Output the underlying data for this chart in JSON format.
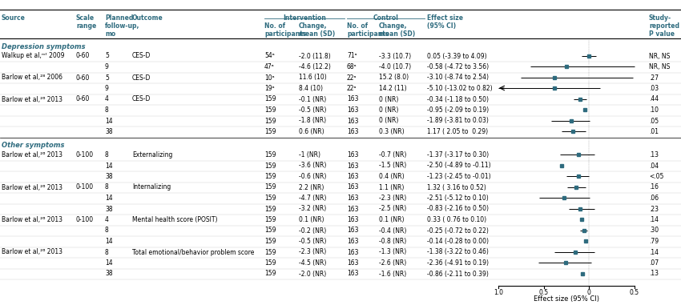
{
  "section_headers": [
    "Depression symptoms",
    "Other symptoms"
  ],
  "rows": [
    {
      "source": "Walkup et al,ᵐᶠ 2009",
      "scale": "0-60",
      "followup": "5",
      "outcome": "CES-D",
      "int_n": "54ᵃ",
      "int_change": "-2.0 (11.8)",
      "ctrl_n": "71ᵃ",
      "ctrl_change": "-3.3 (10.7)",
      "effect": "0.05 (-3.39 to 4.09)",
      "effect_val": 0.0,
      "ci_lo": -0.08,
      "ci_hi": 0.08,
      "p_val": "NR, NS",
      "section": 0,
      "arrow_left": false
    },
    {
      "source": "",
      "scale": "",
      "followup": "9",
      "outcome": "",
      "int_n": "47ᵃ",
      "int_change": "-4.6 (12.2)",
      "ctrl_n": "68ᵃ",
      "ctrl_change": "-4.0 (10.7)",
      "effect": "-0.58 (-4.72 to 3.56)",
      "effect_val": -0.25,
      "ci_lo": -0.65,
      "ci_hi": 0.52,
      "p_val": "NR, NS",
      "section": 0,
      "arrow_left": false
    },
    {
      "source": "Barlow et al,²⁸ 2006",
      "scale": "0-60",
      "followup": "5",
      "outcome": "CES-D",
      "int_n": "10ᵃ",
      "int_change": "11.6 (10)",
      "ctrl_n": "22ᵃ",
      "ctrl_change": "15.2 (8.0)",
      "effect": "-3.10 (-8.74 to 2.54)",
      "effect_val": -0.38,
      "ci_lo": -0.75,
      "ci_hi": 0.48,
      "p_val": ".27",
      "section": 0,
      "arrow_left": false
    },
    {
      "source": "",
      "scale": "",
      "followup": "9",
      "outcome": "",
      "int_n": "19ᵃ",
      "int_change": "8.4 (10)",
      "ctrl_n": "22ᵃ",
      "ctrl_change": "14.2 (11)",
      "effect": "-5.10 (-13.02 to 0.82)",
      "effect_val": -0.38,
      "ci_lo": -1.15,
      "ci_hi": 0.12,
      "p_val": ".03",
      "section": 0,
      "arrow_left": true
    },
    {
      "source": "Barlow et al,²⁶ 2013",
      "scale": "0-60",
      "followup": "4",
      "outcome": "CES-D",
      "int_n": "159",
      "int_change": "-0.1 (NR)",
      "ctrl_n": "163",
      "ctrl_change": "0 (NR)",
      "effect": "-0.34 (-1.18 to 0.50)",
      "effect_val": -0.1,
      "ci_lo": -0.17,
      "ci_hi": -0.03,
      "p_val": ".44",
      "section": 0,
      "arrow_left": false
    },
    {
      "source": "",
      "scale": "",
      "followup": "8",
      "outcome": "",
      "int_n": "159",
      "int_change": "-0.5 (NR)",
      "ctrl_n": "163",
      "ctrl_change": "0 (NR)",
      "effect": "-0.95 (-2.09 to 0.19)",
      "effect_val": -0.05,
      "ci_lo": -0.05,
      "ci_hi": -0.05,
      "p_val": ".10",
      "section": 0,
      "arrow_left": false
    },
    {
      "source": "",
      "scale": "",
      "followup": "14",
      "outcome": "",
      "int_n": "159",
      "int_change": "-1.8 (NR)",
      "ctrl_n": "163",
      "ctrl_change": "0 (NR)",
      "effect": "-1.89 (-3.81 to 0.03)",
      "effect_val": -0.2,
      "ci_lo": -0.42,
      "ci_hi": 0.01,
      "p_val": ".05",
      "section": 0,
      "arrow_left": false
    },
    {
      "source": "",
      "scale": "",
      "followup": "38",
      "outcome": "",
      "int_n": "159",
      "int_change": "0.6 (NR)",
      "ctrl_n": "163",
      "ctrl_change": "0.3 (NR)",
      "effect": "1.17 ( 2.05 to  0.29)",
      "effect_val": -0.18,
      "ci_lo": -0.3,
      "ci_hi": -0.04,
      "p_val": ".01",
      "section": 0,
      "arrow_left": false
    },
    {
      "source": "Barlow et al,²⁶ 2013",
      "scale": "0-100",
      "followup": "8",
      "outcome": "Externalizing",
      "int_n": "159",
      "int_change": "-1 (NR)",
      "ctrl_n": "163",
      "ctrl_change": "-0.7 (NR)",
      "effect": "-1.37 (-3.17 to 0.30)",
      "effect_val": -0.12,
      "ci_lo": -0.32,
      "ci_hi": 0.06,
      "p_val": ".13",
      "section": 1,
      "arrow_left": false
    },
    {
      "source": "",
      "scale": "",
      "followup": "14",
      "outcome": "",
      "int_n": "159",
      "int_change": "-3.6 (NR)",
      "ctrl_n": "163",
      "ctrl_change": "-1.5 (NR)",
      "effect": "-2.50 (-4.89 to -0.11)",
      "effect_val": -0.3,
      "ci_lo": -0.3,
      "ci_hi": -0.3,
      "p_val": ".04",
      "section": 1,
      "arrow_left": false
    },
    {
      "source": "",
      "scale": "",
      "followup": "38",
      "outcome": "",
      "int_n": "159",
      "int_change": "-0.6 (NR)",
      "ctrl_n": "163",
      "ctrl_change": "0.4 (NR)",
      "effect": "-1.23 (-2.45 to -0.01)",
      "effect_val": -0.12,
      "ci_lo": -0.25,
      "ci_hi": 0.0,
      "p_val": "<.05",
      "section": 1,
      "arrow_left": false
    },
    {
      "source": "Barlow et al,²⁶ 2013",
      "scale": "0-100",
      "followup": "8",
      "outcome": "Internalizing",
      "int_n": "159",
      "int_change": "2.2 (NR)",
      "ctrl_n": "163",
      "ctrl_change": "1.1 (NR)",
      "effect": "1.32 ( 3.16 to 0.52)",
      "effect_val": -0.14,
      "ci_lo": -0.24,
      "ci_hi": -0.04,
      "p_val": ".16",
      "section": 1,
      "arrow_left": false
    },
    {
      "source": "",
      "scale": "",
      "followup": "14",
      "outcome": "",
      "int_n": "159",
      "int_change": "-4.7 (NR)",
      "ctrl_n": "163",
      "ctrl_change": "-2.3 (NR)",
      "effect": "-2.51 (-5.12 to 0.10)",
      "effect_val": -0.28,
      "ci_lo": -0.55,
      "ci_hi": 0.01,
      "p_val": ".06",
      "section": 1,
      "arrow_left": false
    },
    {
      "source": "",
      "scale": "",
      "followup": "38",
      "outcome": "",
      "int_n": "159",
      "int_change": "-3.2 (NR)",
      "ctrl_n": "163",
      "ctrl_change": "-2.5 (NR)",
      "effect": "-0.83 (-2.16 to 0.50)",
      "effect_val": -0.1,
      "ci_lo": -0.22,
      "ci_hi": 0.06,
      "p_val": ".23",
      "section": 1,
      "arrow_left": false
    },
    {
      "source": "Barlow et al,²⁶ 2013",
      "scale": "0-100",
      "followup": "4",
      "outcome": "Mental health score (POSIT)",
      "int_n": "159",
      "int_change": "0.1 (NR)",
      "ctrl_n": "163",
      "ctrl_change": "0.1 (NR)",
      "effect": "0.33 ( 0.76 to 0.10)",
      "effect_val": -0.08,
      "ci_lo": -0.08,
      "ci_hi": -0.08,
      "p_val": ".14",
      "section": 1,
      "arrow_left": false
    },
    {
      "source": "",
      "scale": "",
      "followup": "8",
      "outcome": "",
      "int_n": "159",
      "int_change": "-0.2 (NR)",
      "ctrl_n": "163",
      "ctrl_change": "-0.4 (NR)",
      "effect": "-0.25 (-0.72 to 0.22)",
      "effect_val": -0.06,
      "ci_lo": -0.1,
      "ci_hi": -0.02,
      "p_val": ".30",
      "section": 1,
      "arrow_left": false
    },
    {
      "source": "",
      "scale": "",
      "followup": "14",
      "outcome": "",
      "int_n": "159",
      "int_change": "-0.5 (NR)",
      "ctrl_n": "163",
      "ctrl_change": "-0.8 (NR)",
      "effect": "-0.14 (-0.28 to 0.00)",
      "effect_val": -0.04,
      "ci_lo": -0.04,
      "ci_hi": -0.04,
      "p_val": ".79",
      "section": 1,
      "arrow_left": false
    },
    {
      "source": "Barlow et al,²⁶ 2013",
      "scale": "",
      "followup": "8",
      "outcome": "Total emotional/behavior problem score",
      "int_n": "159",
      "int_change": "-2.3 (NR)",
      "ctrl_n": "163",
      "ctrl_change": "-1.3 (NR)",
      "effect": "-1.38 (-3.22 to 0.46)",
      "effect_val": -0.15,
      "ci_lo": -0.38,
      "ci_hi": 0.06,
      "p_val": ".14",
      "section": 1,
      "arrow_left": false
    },
    {
      "source": "",
      "scale": "",
      "followup": "14",
      "outcome": "",
      "int_n": "159",
      "int_change": "-4.5 (NR)",
      "ctrl_n": "163",
      "ctrl_change": "-2.6 (NR)",
      "effect": "-2.36 (-4.91 to 0.19)",
      "effect_val": -0.26,
      "ci_lo": -0.56,
      "ci_hi": 0.02,
      "p_val": ".07",
      "section": 1,
      "arrow_left": false
    },
    {
      "source": "",
      "scale": "",
      "followup": "38",
      "outcome": "",
      "int_n": "159",
      "int_change": "-2.0 (NR)",
      "ctrl_n": "163",
      "ctrl_change": "-1.6 (NR)",
      "effect": "-0.86 (-2.11 to 0.39)",
      "effect_val": -0.07,
      "ci_lo": -0.07,
      "ci_hi": -0.07,
      "p_val": ".13",
      "section": 1,
      "arrow_left": false
    }
  ],
  "bg_color": "#ffffff",
  "text_color": "#000000",
  "header_color": "#2e6b7e",
  "marker_color": "#2e6b7e",
  "section_color": "#2e6b7e",
  "font_size": 5.5,
  "header_font_size": 5.5
}
